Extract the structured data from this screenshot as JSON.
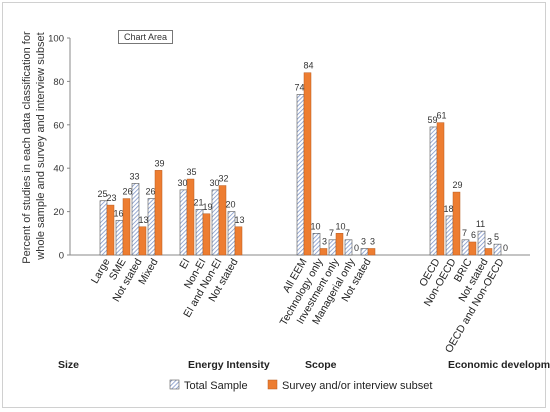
{
  "tooltip": "Chart Area",
  "chart_data": {
    "type": "bar",
    "ylabel": "Percent of studies in each data classification for  whole sample and survey and interview subset",
    "ylim": [
      0,
      100
    ],
    "yticks": [
      0,
      20,
      40,
      60,
      80,
      100
    ],
    "grid": false,
    "legend_position": "bottom",
    "colors": {
      "total": "#8ea9db",
      "survey": "#ed7d31",
      "total_pattern": "hatched"
    },
    "groups": [
      {
        "name": "Size",
        "categories": [
          "Large",
          "SME",
          "Not stated",
          "Mixed"
        ]
      },
      {
        "name": "Energy Intensity",
        "categories": [
          "EI",
          "Non-EI",
          "EI and Non-EI",
          "Not stated"
        ]
      },
      {
        "name": "Scope",
        "categories": [
          "All EEM",
          "Technology only",
          "Investment only",
          "Managerial only",
          "Not stated"
        ]
      },
      {
        "name": "Economic development",
        "categories": [
          "OECD",
          "Non-OECD",
          "BRIC",
          "Not stated",
          "OECD and Non-OECD"
        ]
      }
    ],
    "series": [
      {
        "name": "Total Sample",
        "values": [
          [
            25,
            16,
            33,
            26
          ],
          [
            30,
            21,
            30,
            20
          ],
          [
            74,
            10,
            7,
            7,
            3
          ],
          [
            59,
            18,
            7,
            11,
            5
          ]
        ]
      },
      {
        "name": "Survey and/or interview subset",
        "values": [
          [
            23,
            26,
            13,
            39
          ],
          [
            35,
            19,
            32,
            13
          ],
          [
            84,
            3,
            10,
            0,
            3
          ],
          [
            61,
            29,
            6,
            3,
            0
          ]
        ]
      }
    ]
  }
}
